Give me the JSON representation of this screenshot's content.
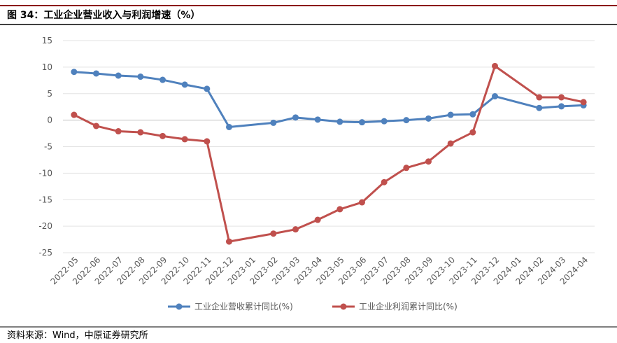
{
  "header": {
    "title": "图 34：工业企业营业收入与利润增速（%）"
  },
  "chart_data": {
    "type": "line",
    "categories": [
      "2022-05",
      "2022-06",
      "2022-07",
      "2022-08",
      "2022-09",
      "2022-10",
      "2022-11",
      "2022-12",
      "2023-01",
      "2023-02",
      "2023-03",
      "2023-04",
      "2023-05",
      "2023-06",
      "2023-07",
      "2023-08",
      "2023-09",
      "2023-10",
      "2023-11",
      "2023-12",
      "2024-01",
      "2024-02",
      "2024-03",
      "2024-04"
    ],
    "series": [
      {
        "name": "工业企业营收累计同比(%)",
        "color": "#4f81bd",
        "values": [
          9.1,
          8.8,
          8.4,
          8.2,
          7.6,
          6.7,
          5.9,
          -1.3,
          null,
          -0.5,
          0.5,
          0.1,
          -0.3,
          -0.4,
          -0.2,
          0.0,
          0.3,
          1.0,
          1.1,
          4.5,
          null,
          2.3,
          2.6,
          2.8
        ]
      },
      {
        "name": "工业企业利润累计同比(%)",
        "color": "#c0504d",
        "values": [
          1.0,
          -1.1,
          -2.1,
          -2.3,
          -3.0,
          -3.6,
          -4.0,
          -22.9,
          null,
          -21.4,
          -20.6,
          -18.8,
          -16.8,
          -15.5,
          -11.7,
          -9.0,
          -7.8,
          -4.4,
          -2.3,
          10.2,
          null,
          4.3,
          4.3,
          3.4
        ]
      }
    ],
    "ylim": [
      -25,
      15
    ],
    "yticks": [
      -25,
      -20,
      -15,
      -10,
      -5,
      0,
      5,
      10,
      15
    ],
    "grid": true
  },
  "footer": {
    "source": "资料来源：Wind，中原证券研究所"
  }
}
